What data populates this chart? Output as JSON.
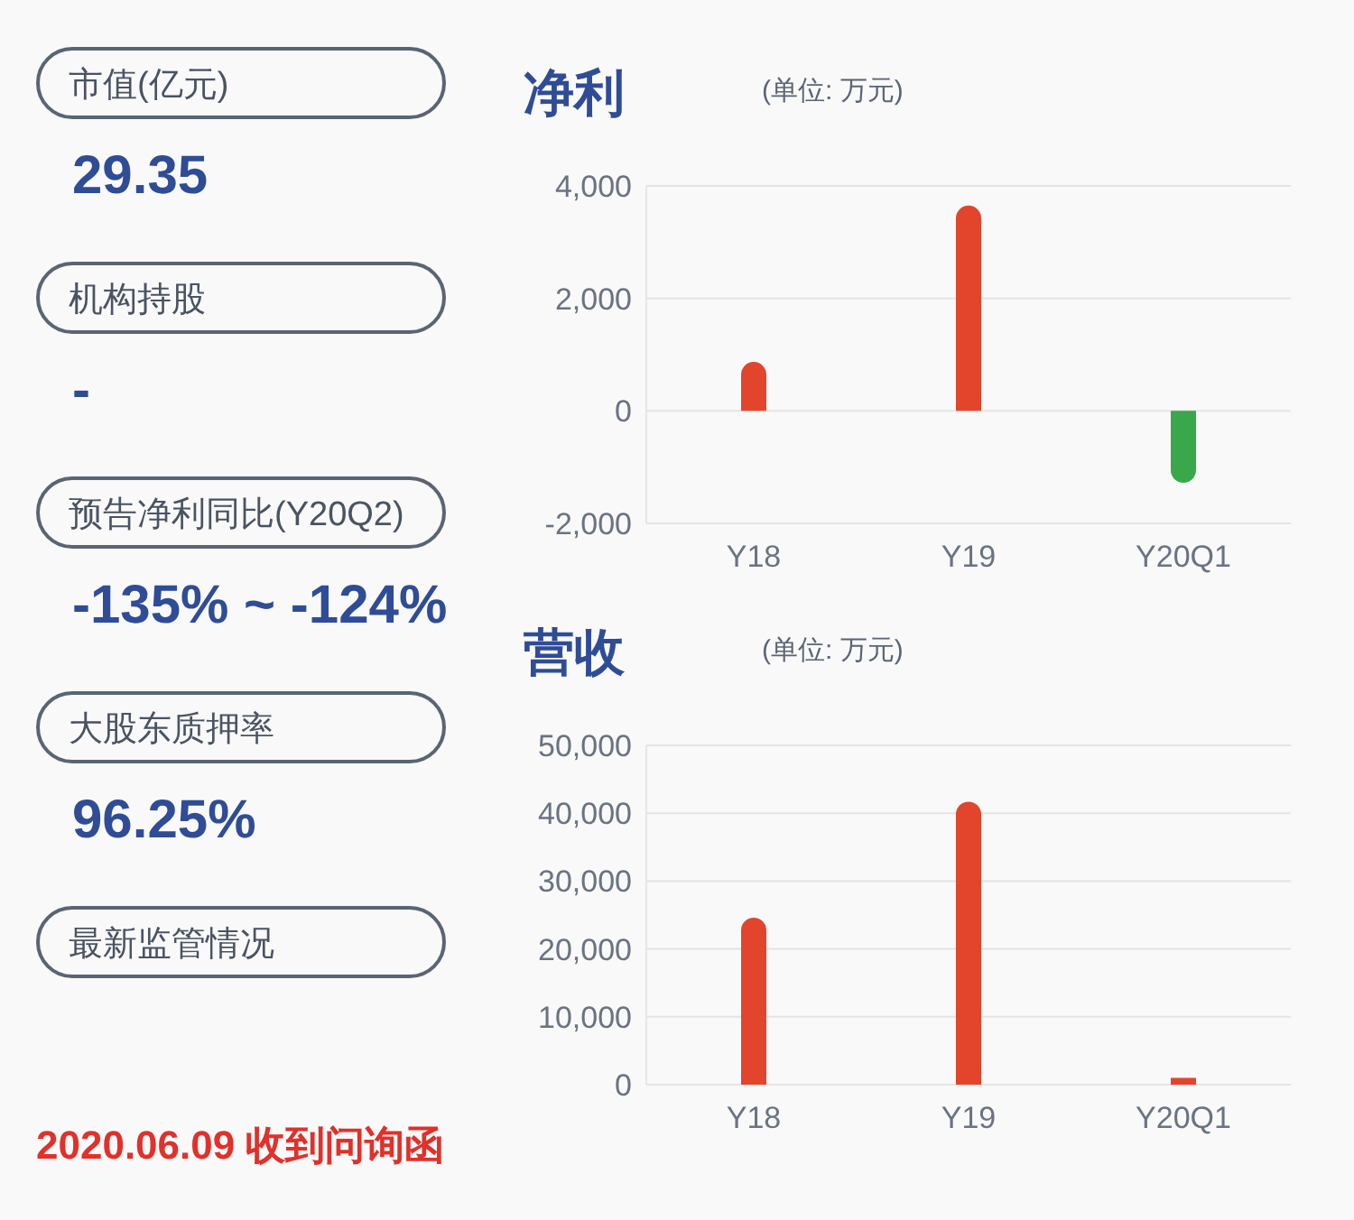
{
  "chart_data": [
    {
      "type": "other",
      "annotations": [
        "市值(亿元)",
        "29.35",
        "机构持股",
        "-",
        "预告净利同比(Y20Q2)",
        "-135% ~ -124%",
        "大股东质押率",
        "96.25%",
        "最新监管情况",
        "2020.06.09 收到问询函"
      ]
    },
    {
      "type": "bar",
      "title": "净利",
      "subtitle": "(单位: 万元)",
      "categories": [
        "Y18",
        "Y19",
        "Y20Q1"
      ],
      "values": [
        870,
        3650,
        -1280
      ],
      "colors": [
        "#e2452b",
        "#e2452b",
        "#3aa84a"
      ],
      "ylim": [
        -2000,
        4000
      ],
      "yticks": [
        {
          "value": -2000,
          "label": "-2,000"
        },
        0,
        {
          "value": 2000,
          "label": "2,000"
        },
        {
          "value": 4000,
          "label": "4,000"
        }
      ],
      "grid": "y"
    },
    {
      "type": "bar",
      "title": "营收",
      "subtitle": "(单位: 万元)",
      "categories": [
        "Y18",
        "Y19",
        "Y20Q1"
      ],
      "values": [
        24600,
        41700,
        1000
      ],
      "colors": [
        "#e2452b",
        "#e2452b",
        "#e2452b"
      ],
      "ylim": [
        0,
        50000
      ],
      "yticks": [
        0,
        {
          "value": 10000,
          "label": "10,000"
        },
        {
          "value": 20000,
          "label": "20,000"
        },
        {
          "value": 30000,
          "label": "30,000"
        },
        {
          "value": 40000,
          "label": "40,000"
        },
        {
          "value": 50000,
          "label": "50,000"
        }
      ],
      "grid": "y"
    }
  ]
}
